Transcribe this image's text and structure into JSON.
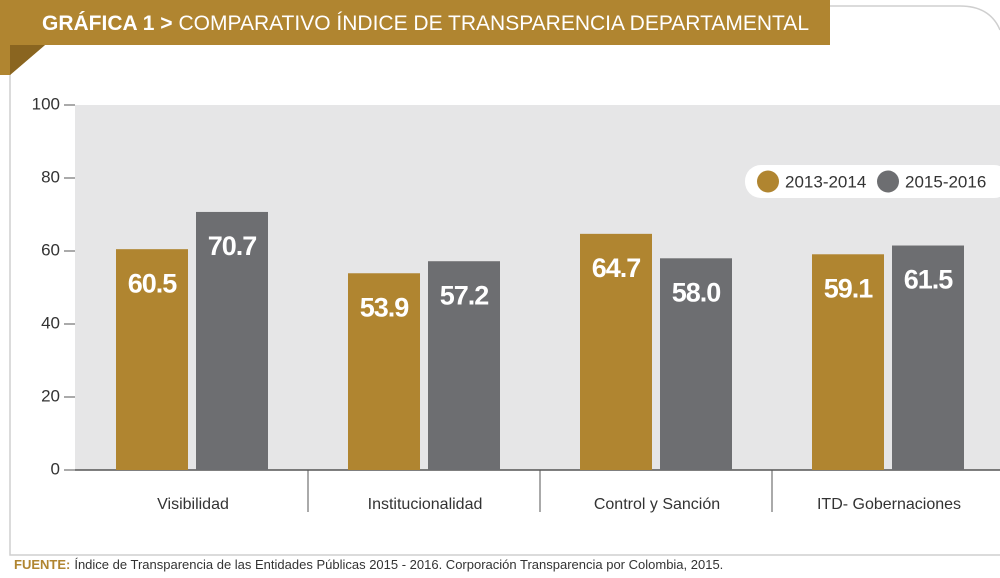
{
  "chart_data": {
    "type": "bar",
    "title_prefix": "GRÁFICA 1 >",
    "title": "COMPARATIVO ÍNDICE DE TRANSPARENCIA DEPARTAMENTAL",
    "categories": [
      "Visibilidad",
      "Institucionalidad",
      "Control y Sanción",
      "ITD- Gobernaciones"
    ],
    "series": [
      {
        "name": "2013-2014",
        "color": "#b08530",
        "values": [
          60.5,
          53.9,
          64.7,
          59.1
        ],
        "value_labels": [
          "60.5",
          "53.9",
          "64.7",
          "59.1"
        ]
      },
      {
        "name": "2015-2016",
        "color": "#6d6e71",
        "values": [
          70.7,
          57.2,
          58.0,
          61.5
        ],
        "value_labels": [
          "70.7",
          "57.2",
          "58.0",
          "61.5"
        ]
      }
    ],
    "ylim": [
      0,
      100
    ],
    "yticks": [
      0,
      20,
      40,
      60,
      80,
      100
    ],
    "legend": "top-right",
    "source_label": "FUENTE:",
    "source": "Índice de Transparencia de las Entidades Públicas 2015 - 2016. Corporación Transparencia por Colombia, 2015."
  }
}
